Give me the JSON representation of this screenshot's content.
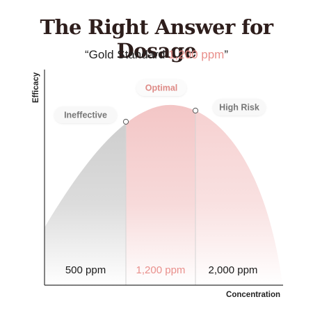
{
  "title": "The Right Answer for Dosage",
  "subtitle": {
    "open_quote": "“",
    "prefix": "Gold Standard ",
    "highlight": "1,200 ppm",
    "close_quote": "”"
  },
  "colors": {
    "title": "#2e1e1c",
    "highlight": "#e9908c",
    "zone_ineffective": "#cfcfcf",
    "zone_optimal": "#f4caca",
    "zone_high_risk": "#f6d3d3",
    "axis": "#333333"
  },
  "chart_data": {
    "type": "area",
    "title": "The Right Answer for Dosage",
    "xlabel": "Concentration",
    "ylabel": "Efficacy",
    "grid": false,
    "legend": "none",
    "zones": [
      {
        "name": "Ineffective",
        "label": "500 ppm",
        "tone": "gray"
      },
      {
        "name": "Optimal",
        "label": "1,200 ppm",
        "tone": "pink"
      },
      {
        "name": "High Risk",
        "label": "2,000 ppm",
        "tone": "lightpink"
      }
    ]
  }
}
